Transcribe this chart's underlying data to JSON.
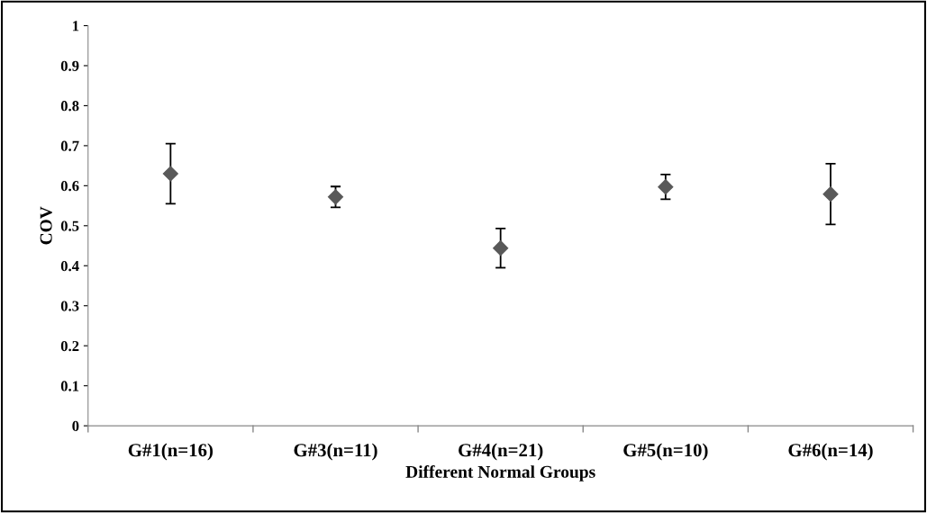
{
  "chart_data": {
    "type": "scatter",
    "xlabel": "Different Normal Groups",
    "ylabel": "COV",
    "categories": [
      "G#1(n=16)",
      "G#3(n=11)",
      "G#4(n=21)",
      "G#5(n=10)",
      "G#6(n=14)"
    ],
    "values": [
      0.63,
      0.572,
      0.444,
      0.597,
      0.579
    ],
    "errors": [
      0.075,
      0.026,
      0.049,
      0.031,
      0.076
    ],
    "color": "#595959",
    "marker": "diamond",
    "ylim": [
      0,
      1
    ],
    "yticks": [
      0,
      0.1,
      0.2,
      0.3,
      0.4,
      0.5,
      0.6,
      0.7,
      0.8,
      0.9,
      1
    ],
    "grid": false,
    "legend": false
  }
}
